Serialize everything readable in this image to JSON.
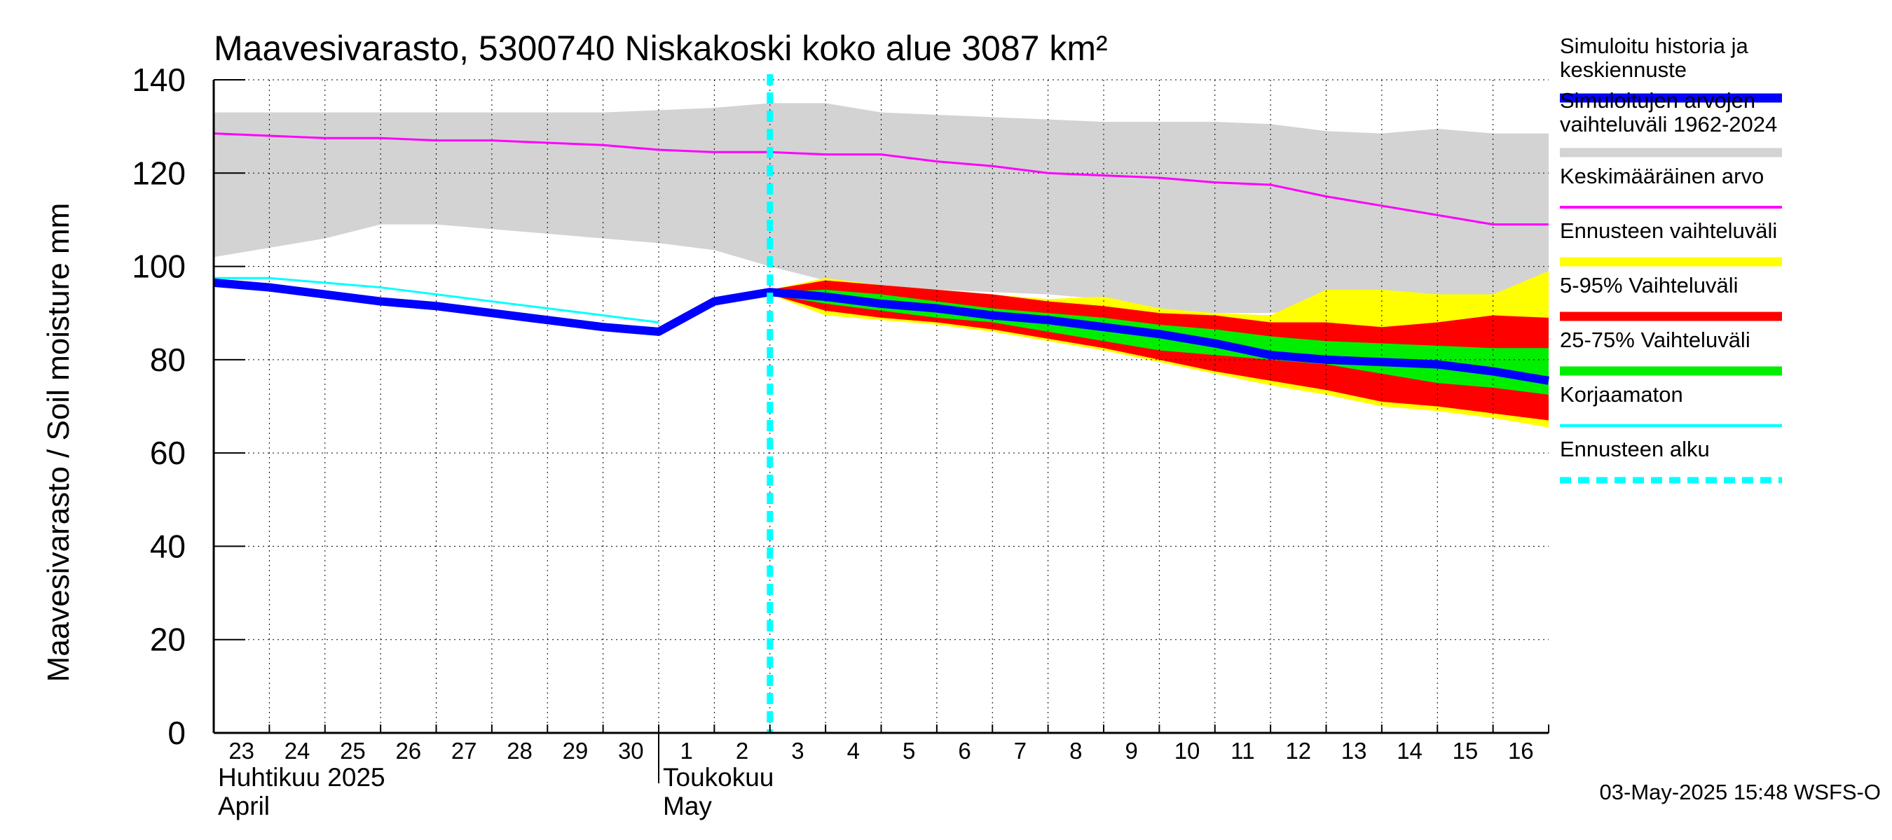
{
  "chart_data": {
    "type": "line",
    "title": "Maavesivarasto, 5300740 Niskakoski koko alue 3087 km²",
    "ylabel": "Maavesivarasto / Soil moisture   mm",
    "ylim": [
      0,
      140
    ],
    "yticks": [
      "0",
      "20",
      "40",
      "60",
      "80",
      "100",
      "120",
      "140"
    ],
    "x_start_day": 23,
    "x_end_day": 47,
    "day_labels": [
      "23",
      "24",
      "25",
      "26",
      "27",
      "28",
      "29",
      "30",
      "1",
      "2",
      "3",
      "4",
      "5",
      "6",
      "7",
      "8",
      "9",
      "10",
      "11",
      "12",
      "13",
      "14",
      "15",
      "16"
    ],
    "months": [
      {
        "fi": "Huhtikuu  2025",
        "en": "April",
        "start_day": 23
      },
      {
        "fi": "Toukokuu",
        "en": "May",
        "start_day": 31
      }
    ],
    "forecast_start_day": 33,
    "timestamp": "03-May-2025 15:48 WSFS-O",
    "historical_range": {
      "x": [
        23,
        24,
        25,
        26,
        27,
        28,
        29,
        30,
        31,
        32,
        33,
        34,
        35,
        36,
        37,
        38,
        39,
        40,
        41,
        42,
        43,
        44,
        45,
        46,
        47
      ],
      "upper": [
        133,
        133,
        133,
        133,
        133,
        133,
        133,
        133,
        133.5,
        134,
        135,
        135,
        133,
        132.5,
        132,
        131.5,
        131,
        131,
        131,
        130.5,
        129,
        128.5,
        129.5,
        128.5,
        128.5
      ],
      "lower": [
        102,
        104,
        106,
        109,
        109,
        108,
        107,
        106,
        105,
        103.5,
        100,
        97,
        96,
        95,
        94.5,
        94,
        93,
        90,
        90,
        90,
        91,
        93,
        94,
        94,
        95
      ]
    },
    "series": [
      {
        "name": "Ennusteen vaihteluväli",
        "color": "#ffff00",
        "kind": "band",
        "x": [
          33,
          34,
          35,
          36,
          37,
          38,
          39,
          40,
          41,
          42,
          43,
          44,
          45,
          46,
          47
        ],
        "upper": [
          95,
          97.5,
          96,
          95,
          94,
          93,
          93.5,
          91,
          90,
          89.5,
          95,
          95,
          94,
          94,
          99
        ],
        "lower": [
          94,
          89.5,
          88.5,
          87.5,
          86,
          84,
          82,
          79.5,
          77,
          74.5,
          72.5,
          70,
          69,
          67.5,
          65.5
        ]
      },
      {
        "name": "5-95% Vaihteluväli",
        "color": "#ff0000",
        "kind": "band",
        "x": [
          33,
          34,
          35,
          36,
          37,
          38,
          39,
          40,
          41,
          42,
          43,
          44,
          45,
          46,
          47
        ],
        "upper": [
          95,
          97,
          96,
          95,
          94,
          92.5,
          91.5,
          90,
          89.5,
          88,
          88,
          87,
          88,
          89.5,
          89
        ],
        "lower": [
          94,
          90.5,
          89,
          88,
          86.5,
          84.5,
          82.5,
          80,
          77.5,
          75.5,
          73.5,
          71,
          70,
          68.5,
          67
        ]
      },
      {
        "name": "25-75% Vaihteluväli",
        "color": "#00ee00",
        "kind": "band",
        "x": [
          33,
          34,
          35,
          36,
          37,
          38,
          39,
          40,
          41,
          42,
          43,
          44,
          45,
          46,
          47
        ],
        "upper": [
          94.5,
          95,
          94,
          92.5,
          91,
          90,
          89,
          87.5,
          86.5,
          85,
          84,
          83.5,
          83,
          82.5,
          82.5
        ],
        "lower": [
          94,
          92,
          90.5,
          89,
          88,
          86,
          84,
          82,
          81,
          80,
          79,
          77,
          75,
          74,
          72.5
        ]
      },
      {
        "name": "Keskimääräinen arvo",
        "color": "#ff00ff",
        "kind": "line",
        "width": 3,
        "x": [
          23,
          24,
          25,
          26,
          27,
          28,
          29,
          30,
          31,
          32,
          33,
          34,
          35,
          36,
          37,
          38,
          39,
          40,
          41,
          42,
          43,
          44,
          45,
          46,
          47
        ],
        "y": [
          128.5,
          128,
          127.5,
          127.5,
          127,
          127,
          126.5,
          126,
          125,
          124.5,
          124.5,
          124,
          124,
          122.5,
          121.5,
          120,
          119.5,
          119,
          118,
          117.5,
          115,
          113,
          111,
          109,
          109
        ]
      },
      {
        "name": "Korjaamaton",
        "color": "#00ffff",
        "kind": "line",
        "width": 3,
        "x": [
          23,
          24,
          25,
          26,
          27,
          28,
          29,
          30,
          31
        ],
        "y": [
          97.5,
          97.5,
          96.5,
          95.5,
          94,
          92.5,
          91,
          89.5,
          88
        ]
      },
      {
        "name": "Simuloitu historia ja keskiennuste",
        "color": "#0000ff",
        "kind": "line",
        "width": 12,
        "x": [
          23,
          24,
          25,
          26,
          27,
          28,
          29,
          30,
          31,
          32,
          33,
          34,
          35,
          36,
          37,
          38,
          39,
          40,
          41,
          42,
          43,
          44,
          45,
          46,
          47
        ],
        "y": [
          96.5,
          95.5,
          94,
          92.5,
          91.5,
          90,
          88.5,
          87,
          86,
          92.5,
          94.5,
          93.5,
          92,
          91,
          89.5,
          88.5,
          87,
          85.5,
          83.5,
          81,
          80,
          79.5,
          79,
          77.5,
          75.5
        ]
      }
    ],
    "legend": [
      {
        "label": "Simuloitu historia ja\nkeskiennuste",
        "color": "#0000ff",
        "style": "thick"
      },
      {
        "label": "Simuloitujen arvojen\nvaihteluväli 1962-2024",
        "color": "#d3d3d3",
        "style": "thick"
      },
      {
        "label": "Keskimääräinen arvo",
        "color": "#ff00ff",
        "style": "thin"
      },
      {
        "label": "Ennusteen vaihteluväli",
        "color": "#ffff00",
        "style": "thick"
      },
      {
        "label": "5-95% Vaihteluväli",
        "color": "#ff0000",
        "style": "thick"
      },
      {
        "label": "25-75% Vaihteluväli",
        "color": "#00ee00",
        "style": "thick"
      },
      {
        "label": "Korjaamaton",
        "color": "#00ffff",
        "style": "thin"
      },
      {
        "label": "Ennusteen alku",
        "color": "#00ffff",
        "style": "dashed"
      }
    ]
  }
}
